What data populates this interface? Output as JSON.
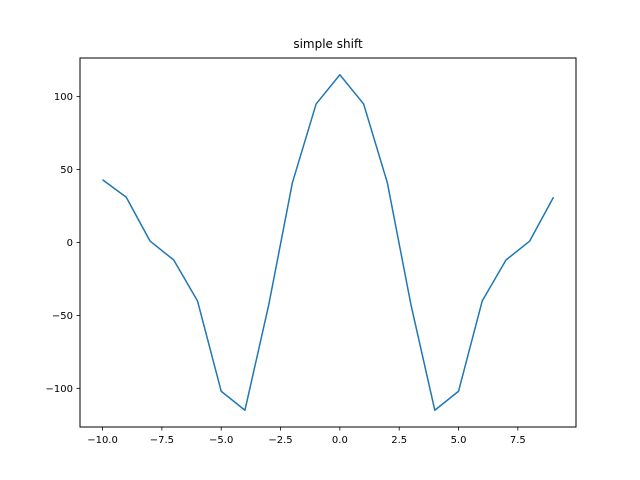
{
  "chart_data": {
    "type": "line",
    "title": "simple shift",
    "xlabel": "",
    "ylabel": "",
    "xlim": [
      -10.95,
      9.95
    ],
    "ylim": [
      -126.5,
      126.5
    ],
    "xticks": [
      -10.0,
      -7.5,
      -5.0,
      -2.5,
      0.0,
      2.5,
      5.0,
      7.5
    ],
    "xtick_labels": [
      "−10.0",
      "−7.5",
      "−5.0",
      "−2.5",
      "0.0",
      "2.5",
      "5.0",
      "7.5"
    ],
    "yticks": [
      -100,
      -50,
      0,
      50,
      100
    ],
    "ytick_labels": [
      "−100",
      "−50",
      "0",
      "50",
      "100"
    ],
    "grid": false,
    "series": [
      {
        "color": "#1f77b4",
        "x": [
          -10,
          -9,
          -8,
          -7,
          -6,
          -5,
          -4,
          -3,
          -2,
          -1,
          0,
          1,
          2,
          3,
          4,
          5,
          6,
          7,
          8,
          9
        ],
        "y": [
          43,
          31,
          1,
          -12,
          -40,
          -102,
          -115,
          -43,
          41,
          95,
          115,
          95,
          41,
          -43,
          -115,
          -102,
          -40,
          -12,
          1,
          31
        ]
      }
    ]
  }
}
